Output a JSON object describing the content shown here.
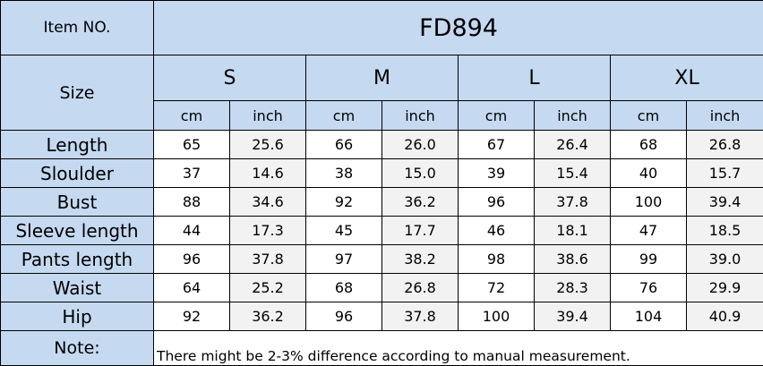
{
  "item_label": "Item NO.",
  "item_no": "FD894",
  "size_label": "Size",
  "sizes": [
    "S",
    "M",
    "L",
    "XL"
  ],
  "units": [
    "cm",
    "inch"
  ],
  "rows": [
    {
      "label": "Length",
      "values": [
        "65",
        "25.6",
        "66",
        "26.0",
        "67",
        "26.4",
        "68",
        "26.8"
      ]
    },
    {
      "label": "Sloulder",
      "values": [
        "37",
        "14.6",
        "38",
        "15.0",
        "39",
        "15.4",
        "40",
        "15.7"
      ]
    },
    {
      "label": "Bust",
      "values": [
        "88",
        "34.6",
        "92",
        "36.2",
        "96",
        "37.8",
        "100",
        "39.4"
      ]
    },
    {
      "label": "Sleeve length",
      "values": [
        "44",
        "17.3",
        "45",
        "17.7",
        "46",
        "18.1",
        "47",
        "18.5"
      ]
    },
    {
      "label": "Pants  length",
      "values": [
        "96",
        "37.8",
        "97",
        "38.2",
        "98",
        "38.6",
        "99",
        "39.0"
      ]
    },
    {
      "label": "Waist",
      "values": [
        "64",
        "25.2",
        "68",
        "26.8",
        "72",
        "28.3",
        "76",
        "29.9"
      ]
    },
    {
      "label": "Hip",
      "values": [
        "92",
        "36.2",
        "96",
        "37.8",
        "100",
        "39.4",
        "104",
        "40.9"
      ]
    }
  ],
  "note_label": "Note:",
  "note_text": "There might be 2-3% difference according to manual measurement."
}
